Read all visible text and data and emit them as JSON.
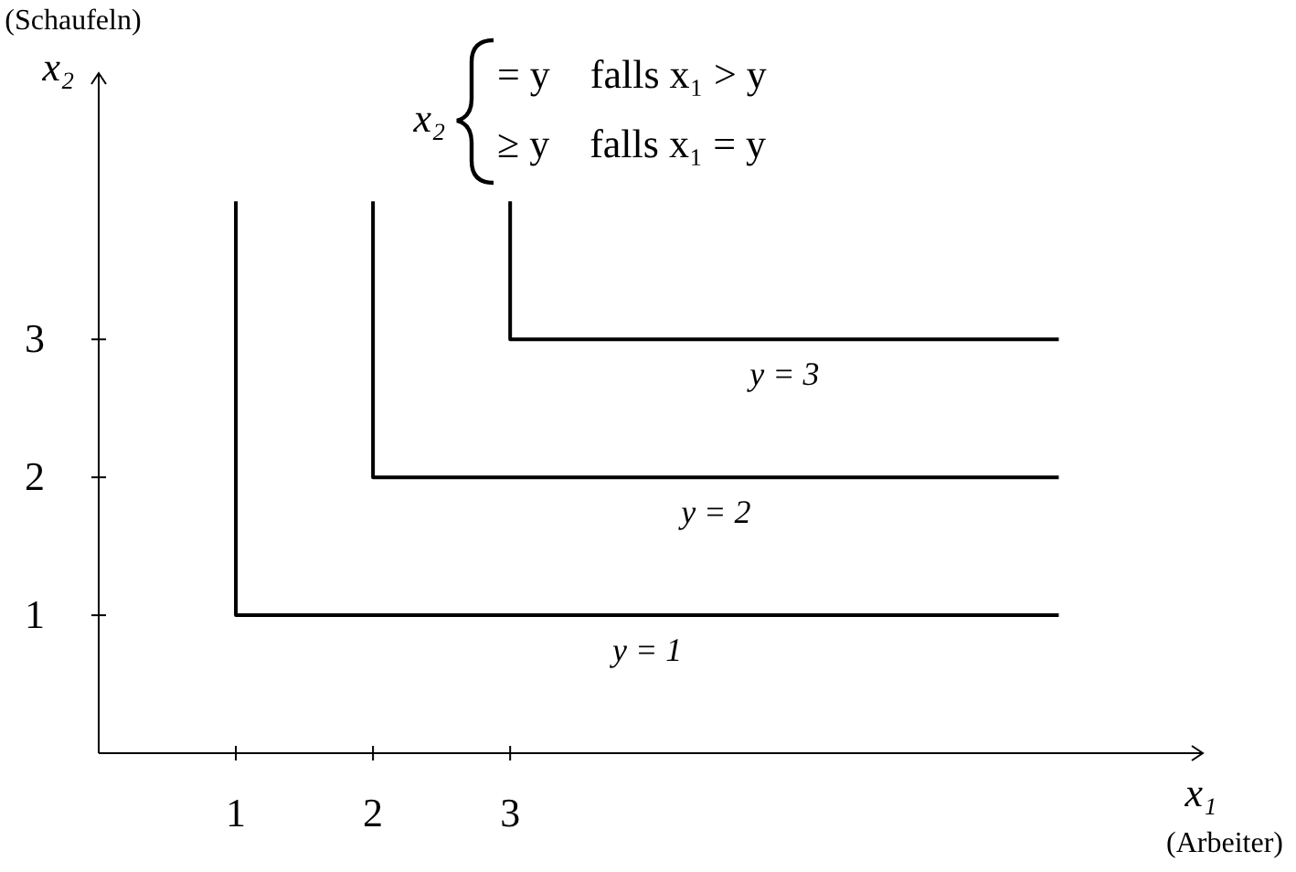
{
  "chart_data": {
    "type": "line",
    "xlabel": "x₁ (Arbeiter)",
    "ylabel": "(Schaufeln) x₂",
    "annotations": [
      "x₂",
      "= y    falls x₁ > y",
      "≥ y    falls x₁ = y"
    ],
    "xlim": [
      0,
      8.05
    ],
    "ylim": [
      0,
      4.93
    ],
    "xticks": [
      1,
      2,
      3
    ],
    "yticks": [
      1,
      2,
      3
    ],
    "grid": false,
    "marker": "none",
    "line_style": "solid",
    "series": [
      {
        "name": "y = 1",
        "color": "#000000",
        "x": [
          1,
          1,
          7
        ],
        "values": [
          4,
          1,
          1
        ]
      },
      {
        "name": "y = 2",
        "color": "#000000",
        "x": [
          2,
          2,
          7
        ],
        "values": [
          4,
          2,
          2
        ]
      },
      {
        "name": "y = 3",
        "color": "#000000",
        "x": [
          3,
          3,
          7
        ],
        "values": [
          4,
          3,
          3
        ]
      }
    ]
  }
}
